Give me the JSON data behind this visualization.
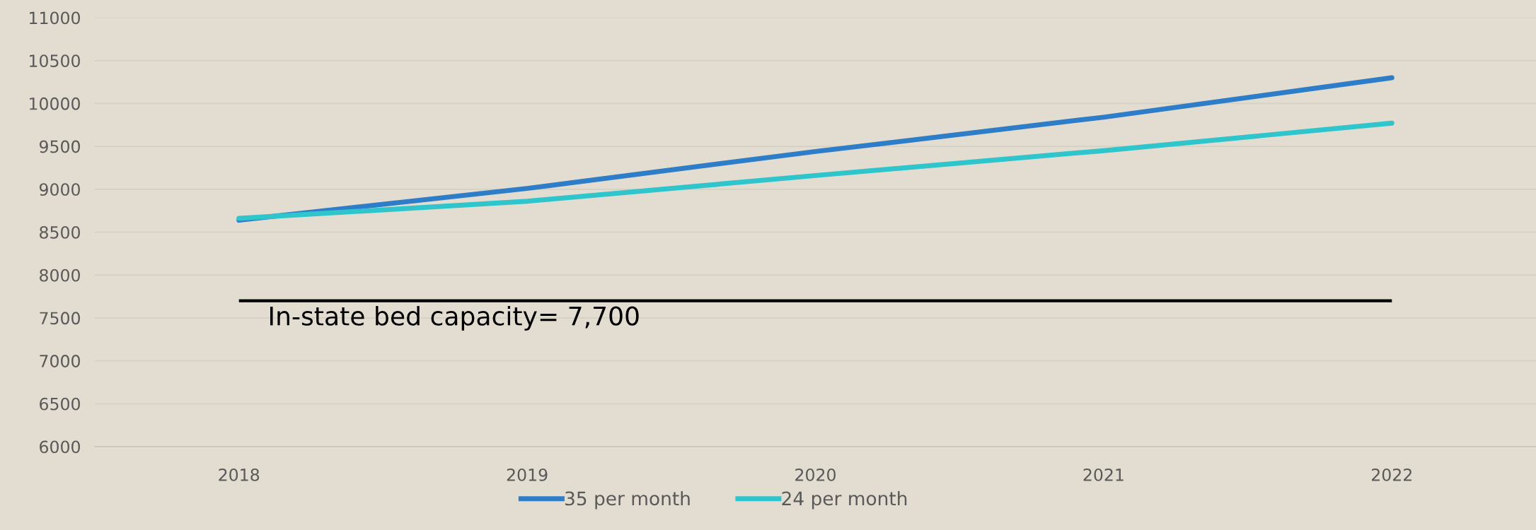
{
  "chart_data": {
    "type": "line",
    "categories": [
      "2018",
      "2019",
      "2020",
      "2021",
      "2022"
    ],
    "series": [
      {
        "name": "35 per month",
        "color": "#2e7dc9",
        "values": [
          8640,
          9010,
          9440,
          9840,
          10300
        ]
      },
      {
        "name": "24 per month",
        "color": "#2ec5cc",
        "values": [
          8660,
          8860,
          9160,
          9450,
          9770
        ]
      }
    ],
    "ylim": [
      6000,
      11000
    ],
    "yticks": [
      6000,
      6500,
      7000,
      7500,
      8000,
      8500,
      9000,
      9500,
      10000,
      10500,
      11000
    ],
    "grid": "y",
    "legend": "bottom",
    "marker": "none",
    "line_style": "solid",
    "ref_lines": [
      {
        "axis": "y",
        "value": 7700,
        "label": "In-state bed capacity= 7,700",
        "color": "#000000"
      }
    ]
  }
}
